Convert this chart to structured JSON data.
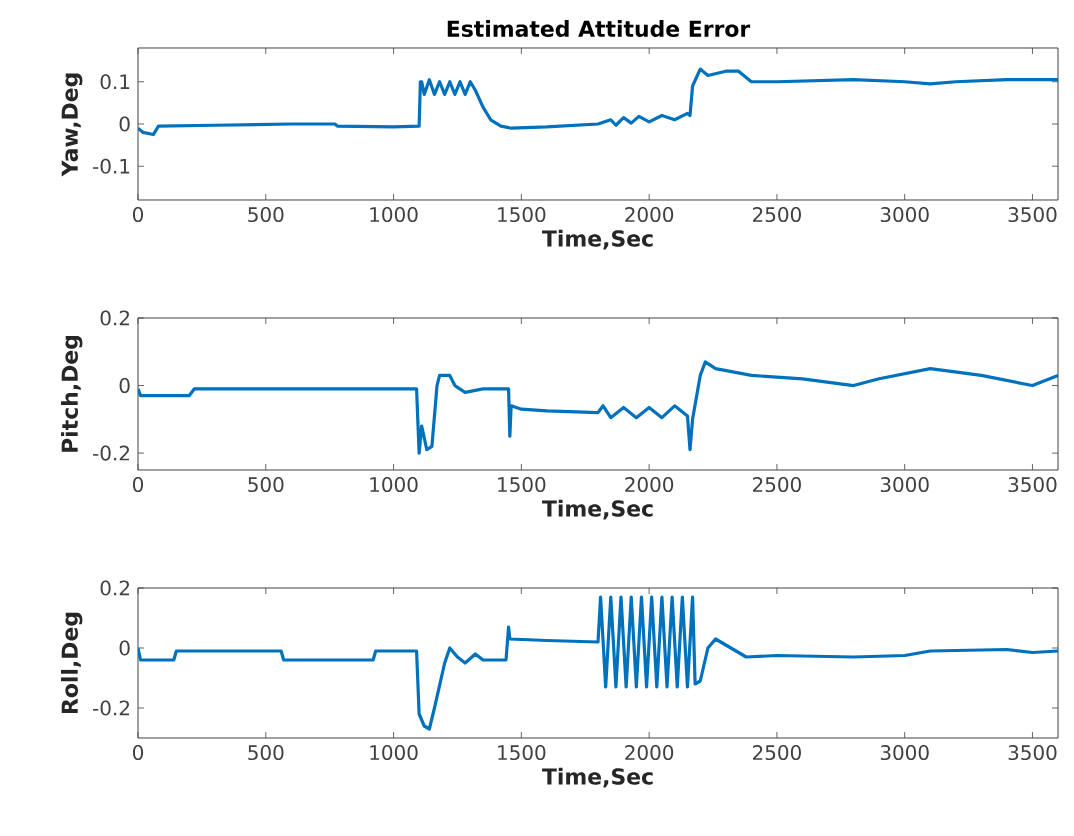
{
  "chart_data": [
    {
      "type": "line",
      "title": "Estimated Attitude Error",
      "xlabel": "Time,Sec",
      "ylabel": "Yaw,Deg",
      "xlim": [
        0,
        3600
      ],
      "xticks": [
        0,
        500,
        1000,
        1500,
        2000,
        2500,
        3000,
        3500
      ],
      "ylim": [
        -0.18,
        0.18
      ],
      "yticks": [
        -0.1,
        0,
        0.1
      ],
      "series": [
        {
          "color": "#0072bd",
          "x": [
            0,
            20,
            60,
            80,
            300,
            600,
            770,
            780,
            1000,
            1100,
            1105,
            1110,
            1120,
            1140,
            1160,
            1180,
            1200,
            1220,
            1240,
            1260,
            1280,
            1300,
            1320,
            1350,
            1380,
            1420,
            1460,
            1600,
            1800,
            1850,
            1870,
            1900,
            1930,
            1960,
            2000,
            2050,
            2100,
            2150,
            2160,
            2170,
            2200,
            2230,
            2300,
            2350,
            2400,
            2500,
            2800,
            3000,
            3100,
            3200,
            3400,
            3600
          ],
          "values": [
            -0.01,
            -0.02,
            -0.025,
            -0.005,
            -0.003,
            0.0,
            0.0,
            -0.005,
            -0.007,
            -0.005,
            0.1,
            0.1,
            0.07,
            0.105,
            0.07,
            0.1,
            0.07,
            0.1,
            0.07,
            0.1,
            0.07,
            0.1,
            0.08,
            0.04,
            0.01,
            -0.005,
            -0.01,
            -0.007,
            0.0,
            0.01,
            -0.003,
            0.015,
            0.002,
            0.018,
            0.005,
            0.02,
            0.01,
            0.025,
            0.02,
            0.09,
            0.13,
            0.115,
            0.125,
            0.125,
            0.1,
            0.1,
            0.105,
            0.1,
            0.095,
            0.1,
            0.105,
            0.105
          ]
        }
      ]
    },
    {
      "type": "line",
      "xlabel": "Time,Sec",
      "ylabel": "Pitch,Deg",
      "xlim": [
        0,
        3600
      ],
      "xticks": [
        0,
        500,
        1000,
        1500,
        2000,
        2500,
        3000,
        3500
      ],
      "ylim": [
        -0.25,
        0.2
      ],
      "yticks": [
        -0.2,
        0,
        0.2
      ],
      "series": [
        {
          "color": "#0072bd",
          "x": [
            0,
            10,
            200,
            220,
            1090,
            1100,
            1110,
            1130,
            1150,
            1170,
            1180,
            1220,
            1240,
            1280,
            1350,
            1450,
            1455,
            1460,
            1500,
            1600,
            1800,
            1820,
            1850,
            1900,
            1950,
            2000,
            2050,
            2100,
            2150,
            2160,
            2170,
            2200,
            2220,
            2260,
            2400,
            2600,
            2800,
            2900,
            3100,
            3300,
            3500,
            3600
          ],
          "values": [
            -0.01,
            -0.03,
            -0.03,
            -0.01,
            -0.01,
            -0.2,
            -0.12,
            -0.19,
            -0.18,
            0.0,
            0.03,
            0.03,
            0.0,
            -0.02,
            -0.01,
            -0.01,
            -0.15,
            -0.06,
            -0.07,
            -0.075,
            -0.08,
            -0.06,
            -0.095,
            -0.065,
            -0.095,
            -0.065,
            -0.095,
            -0.06,
            -0.09,
            -0.19,
            -0.1,
            0.03,
            0.07,
            0.05,
            0.03,
            0.02,
            0.0,
            0.02,
            0.05,
            0.03,
            0.0,
            0.03
          ]
        }
      ]
    },
    {
      "type": "line",
      "xlabel": "Time,Sec",
      "ylabel": "Roll,Deg",
      "xlim": [
        0,
        3600
      ],
      "xticks": [
        0,
        500,
        1000,
        1500,
        2000,
        2500,
        3000,
        3500
      ],
      "ylim": [
        -0.3,
        0.2
      ],
      "yticks": [
        -0.2,
        0,
        0.2
      ],
      "series": [
        {
          "color": "#0072bd",
          "x": [
            0,
            10,
            140,
            150,
            560,
            570,
            920,
            930,
            1090,
            1100,
            1120,
            1140,
            1160,
            1200,
            1220,
            1250,
            1280,
            1320,
            1350,
            1440,
            1450,
            1455,
            1600,
            1800,
            1810,
            1830,
            1850,
            1870,
            1890,
            1910,
            1930,
            1950,
            1970,
            1990,
            2010,
            2030,
            2050,
            2070,
            2090,
            2110,
            2130,
            2150,
            2170,
            2180,
            2200,
            2230,
            2260,
            2300,
            2380,
            2500,
            2800,
            3000,
            3100,
            3400,
            3500,
            3600
          ],
          "values": [
            0.0,
            -0.04,
            -0.04,
            -0.01,
            -0.01,
            -0.04,
            -0.04,
            -0.01,
            -0.01,
            -0.22,
            -0.26,
            -0.27,
            -0.2,
            -0.05,
            0.0,
            -0.03,
            -0.05,
            -0.02,
            -0.04,
            -0.04,
            0.07,
            0.03,
            0.025,
            0.02,
            0.17,
            -0.13,
            0.17,
            -0.13,
            0.17,
            -0.13,
            0.17,
            -0.13,
            0.17,
            -0.13,
            0.17,
            -0.13,
            0.17,
            -0.13,
            0.17,
            -0.13,
            0.17,
            -0.13,
            0.17,
            -0.12,
            -0.11,
            0.0,
            0.03,
            0.01,
            -0.03,
            -0.025,
            -0.03,
            -0.025,
            -0.01,
            -0.005,
            -0.015,
            -0.01
          ]
        }
      ]
    }
  ]
}
